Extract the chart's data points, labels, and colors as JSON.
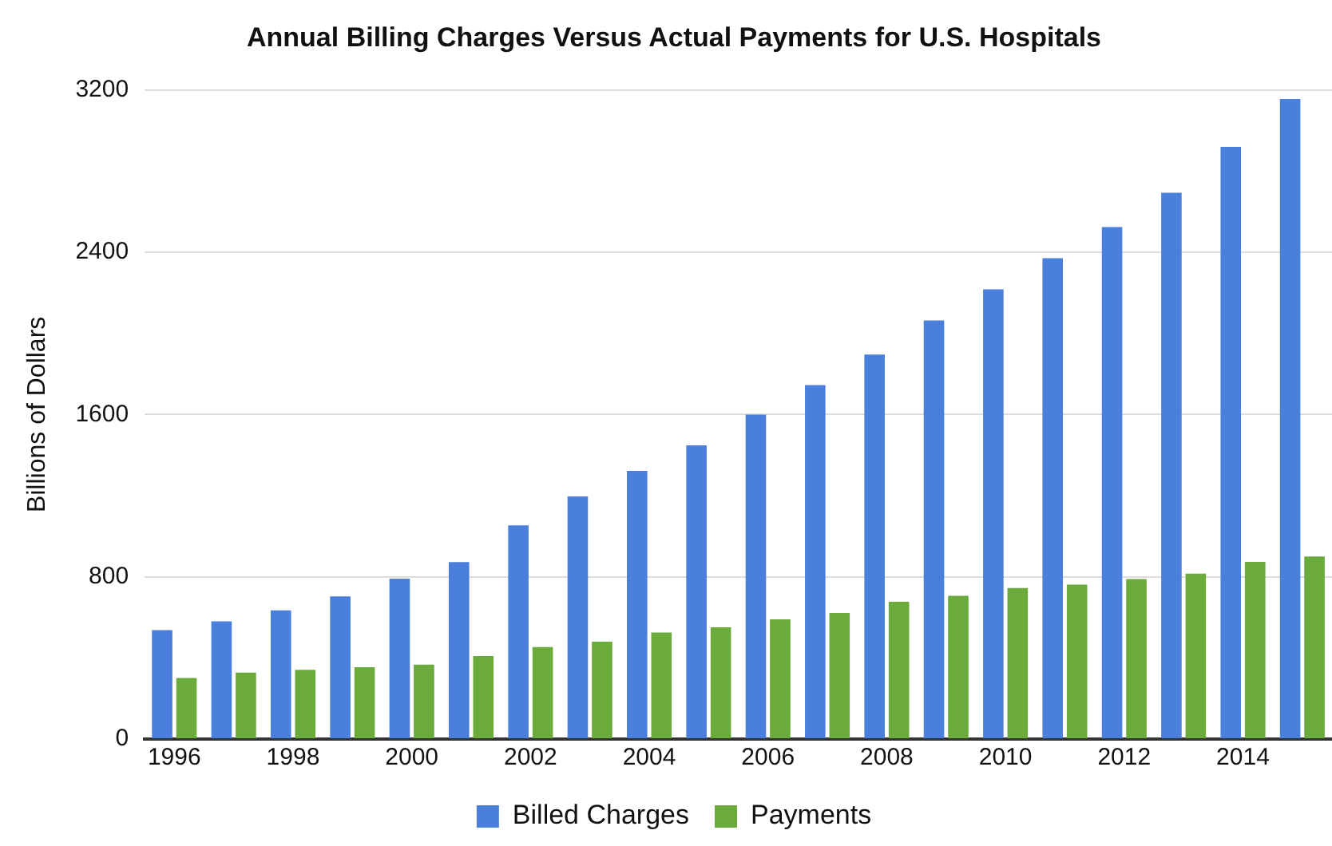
{
  "chart_data": {
    "type": "bar",
    "title": "Annual Billing Charges Versus Actual Payments for U.S. Hospitals",
    "ylabel": "Billions of Dollars",
    "categories": [
      "1996",
      null,
      "1998",
      null,
      "2000",
      null,
      "2002",
      null,
      "2004",
      null,
      "2006",
      null,
      "2008",
      null,
      "2010",
      null,
      "2012",
      null,
      "2014",
      null
    ],
    "series": [
      {
        "name": "Billed Charges",
        "color": "#4a80dc",
        "values": [
          537,
          580,
          635,
          703,
          791,
          873,
          1054,
          1196,
          1322,
          1448,
          1600,
          1745,
          1896,
          2064,
          2217,
          2371,
          2524,
          2694,
          2920,
          3156
        ]
      },
      {
        "name": "Payments",
        "color": "#6aab3c",
        "values": [
          301,
          328,
          341,
          354,
          367,
          409,
          454,
          480,
          525,
          551,
          590,
          622,
          677,
          706,
          745,
          761,
          789,
          816,
          874,
          900
        ]
      }
    ],
    "ylim": [
      0,
      3200
    ],
    "yticks": [
      0,
      800,
      1600,
      2400,
      3200
    ],
    "grid": "y",
    "legend": "bottom"
  }
}
